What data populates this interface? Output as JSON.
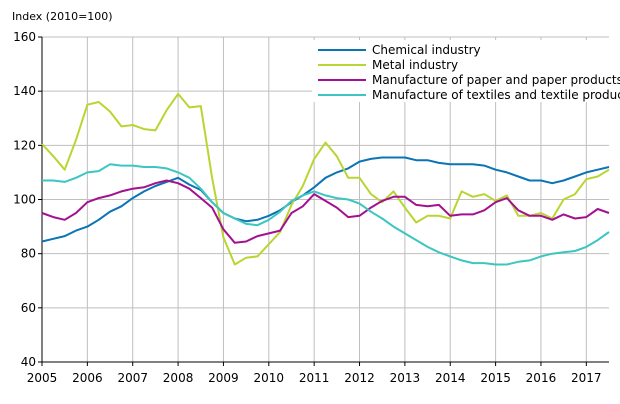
{
  "chart_data": {
    "type": "line",
    "title": "",
    "ylabel": "Index (2010=100)",
    "xlabel": "",
    "xlim": [
      2005,
      2017.5
    ],
    "ylim": [
      40,
      160
    ],
    "yticks": [
      40,
      60,
      80,
      100,
      120,
      140,
      160
    ],
    "xticks": [
      "2005",
      "2006",
      "2007",
      "2008",
      "2009",
      "2010",
      "2011",
      "2012",
      "2013",
      "2014",
      "2015",
      "2016",
      "2017"
    ],
    "grid": true,
    "legend_position": "top-right",
    "x_step": 0.25,
    "series": [
      {
        "name": "Chemical industry",
        "color": "#0a74b5",
        "values": [
          84.5,
          85.5,
          86.5,
          88.5,
          90,
          92.5,
          95.5,
          97.5,
          100.5,
          103,
          105,
          106.5,
          108,
          105.5,
          103.5,
          99,
          95,
          93,
          92,
          92.5,
          94,
          96,
          99,
          101.5,
          104.5,
          108,
          110,
          111.5,
          114,
          115,
          115.5,
          115.5,
          115.5,
          114.5,
          114.5,
          113.5,
          113,
          113,
          113,
          112.5,
          111,
          110,
          108.5,
          107,
          107,
          106,
          107,
          108.5,
          110,
          111,
          112
        ]
      },
      {
        "name": "Metal industry",
        "color": "#b9d531",
        "values": [
          120.5,
          116,
          111,
          122,
          135,
          136,
          132.5,
          127,
          127.5,
          126,
          125.5,
          133,
          139,
          134,
          134.5,
          108,
          86,
          76,
          78.5,
          79,
          83.5,
          88,
          98,
          105,
          115,
          121,
          116,
          108,
          108,
          102,
          99,
          103,
          97,
          91.5,
          94,
          94,
          93,
          103,
          101,
          102,
          99.5,
          101.5,
          94,
          94,
          95,
          93,
          100,
          102,
          107.5,
          108.5,
          111
        ]
      },
      {
        "name": "Manufacture of paper and paper products",
        "color": "#a3118f",
        "values": [
          95,
          93.5,
          92.5,
          95,
          99,
          100.5,
          101.5,
          103,
          104,
          104.5,
          106,
          107,
          106,
          104,
          100.5,
          97,
          89,
          84,
          84.5,
          86.5,
          87.5,
          88.5,
          95,
          97.5,
          102,
          99.5,
          97,
          93.5,
          94,
          97,
          99.5,
          101,
          101,
          98,
          97.5,
          98,
          94,
          94.5,
          94.5,
          96,
          99,
          100.5,
          96,
          94,
          94,
          92.5,
          94.5,
          93,
          93.5,
          96.5,
          95
        ]
      },
      {
        "name": "Manufacture of textiles and textile products",
        "color": "#3cc6c1",
        "values": [
          107,
          107,
          106.5,
          108,
          110,
          110.5,
          113,
          112.5,
          112.5,
          112,
          112,
          111.5,
          110,
          108,
          104,
          99,
          95,
          93,
          91,
          90.5,
          92.5,
          95.5,
          99.5,
          101.5,
          103,
          101.5,
          100.5,
          100,
          98.5,
          95.5,
          93,
          90,
          87.5,
          85,
          82.5,
          80.5,
          79,
          77.5,
          76.5,
          76.5,
          76,
          76,
          77,
          77.5,
          79,
          80,
          80.5,
          81,
          82.5,
          85,
          88
        ]
      }
    ]
  }
}
